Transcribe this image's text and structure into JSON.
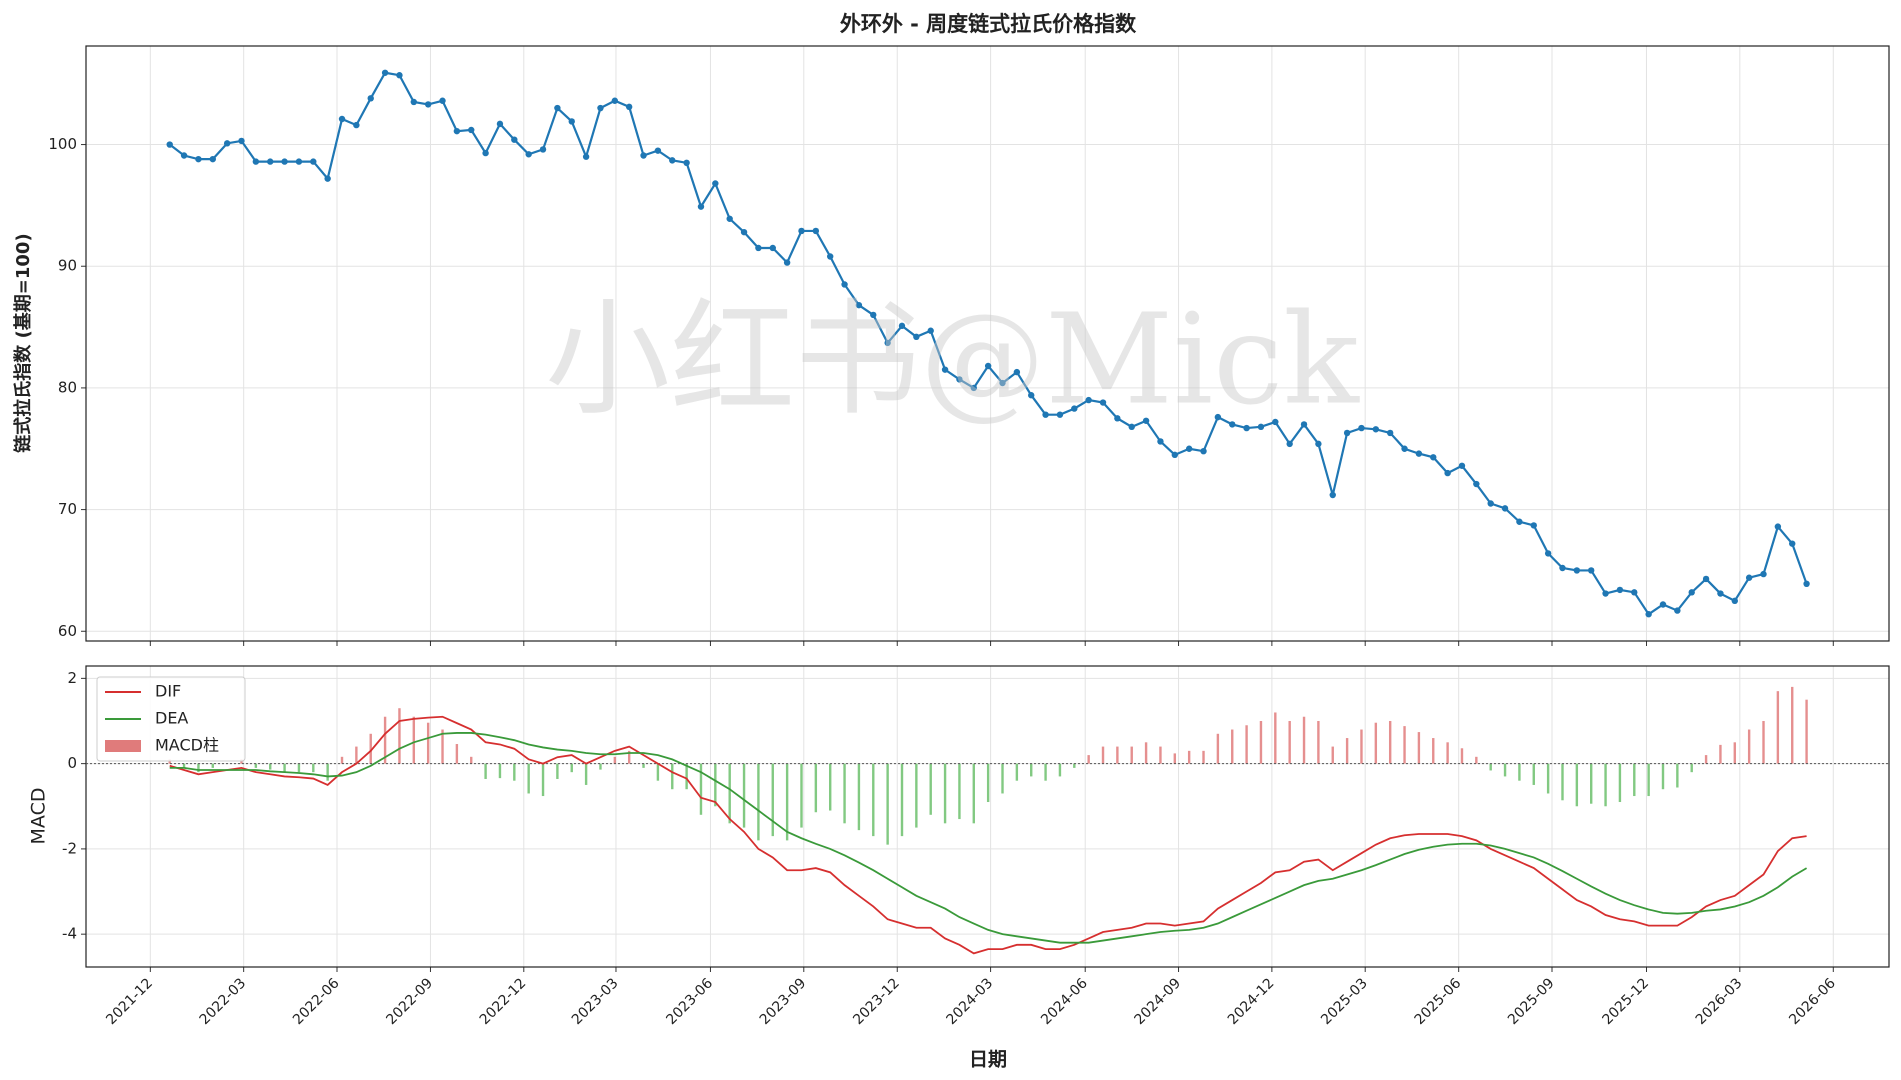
{
  "chart_data": [
    {
      "type": "line",
      "title": "外环外 - 周度链式拉氏价格指数",
      "ylabel": "链式拉氏指数 (基期=100)",
      "watermark": "小红书@Mick",
      "color": "#1f77b4",
      "grid": true,
      "xlim": [
        -5.83,
        119.74
      ],
      "ylim": [
        59.2,
        108.1
      ],
      "yticks": [
        60,
        70,
        80,
        90,
        100
      ],
      "values": [
        100,
        99.1,
        98.8,
        98.8,
        100.1,
        100.3,
        98.6,
        98.6,
        98.6,
        98.6,
        98.6,
        97.2,
        102.1,
        101.6,
        103.8,
        105.9,
        105.7,
        103.5,
        103.3,
        103.6,
        101.1,
        101.2,
        99.3,
        101.7,
        100.4,
        99.2,
        99.6,
        103.0,
        101.9,
        99.0,
        103.0,
        103.6,
        103.1,
        99.1,
        99.5,
        98.7,
        98.5,
        94.9,
        96.8,
        93.9,
        92.8,
        91.5,
        91.5,
        90.3,
        92.9,
        92.9,
        90.8,
        88.5,
        86.8,
        86.0,
        83.7,
        85.1,
        84.2,
        84.7,
        81.5,
        80.7,
        80.0,
        81.8,
        80.4,
        81.3,
        79.4,
        77.8,
        77.8,
        78.3,
        79.0,
        78.8,
        77.5,
        76.8,
        77.3,
        75.6,
        74.5,
        75.0,
        74.8,
        77.6,
        77.0,
        76.7,
        76.8,
        77.2,
        75.4,
        77.0,
        75.4,
        71.2,
        76.3,
        76.7,
        76.6,
        76.3,
        75.0,
        74.6,
        74.3,
        73.0,
        73.6,
        72.1,
        70.5,
        70.1,
        69.0,
        68.7,
        66.4,
        65.2,
        65.0,
        65.0,
        63.1,
        63.4,
        63.2,
        61.4,
        62.2,
        61.7,
        63.2,
        64.3,
        63.1,
        62.5,
        64.4,
        64.7,
        68.6,
        67.2,
        63.9
      ]
    },
    {
      "type": "line",
      "xlabel": "日期",
      "ylabel": "MACD",
      "grid": true,
      "legend": "upper left",
      "xlim": [
        -5.83,
        119.74
      ],
      "xticks": [
        {
          "value": -1.35,
          "label": "2021-12"
        },
        {
          "value": 5.15,
          "label": "2022-03"
        },
        {
          "value": 11.65,
          "label": "2022-06"
        },
        {
          "value": 18.16,
          "label": "2022-09"
        },
        {
          "value": 24.66,
          "label": "2022-12"
        },
        {
          "value": 31.08,
          "label": "2023-03"
        },
        {
          "value": 37.66,
          "label": "2023-06"
        },
        {
          "value": 44.16,
          "label": "2023-09"
        },
        {
          "value": 50.67,
          "label": "2023-12"
        },
        {
          "value": 57.17,
          "label": "2024-03"
        },
        {
          "value": 63.76,
          "label": "2024-06"
        },
        {
          "value": 70.26,
          "label": "2024-09"
        },
        {
          "value": 76.76,
          "label": "2024-12"
        },
        {
          "value": 83.26,
          "label": "2025-03"
        },
        {
          "value": 89.77,
          "label": "2025-06"
        },
        {
          "value": 96.27,
          "label": "2025-09"
        },
        {
          "value": 102.85,
          "label": "2025-12"
        },
        {
          "value": 109.35,
          "label": "2026-03"
        },
        {
          "value": 115.86,
          "label": "2026-06"
        }
      ],
      "ylim": [
        -4.77,
        2.29
      ],
      "yticks": [
        -4,
        -2,
        0,
        2
      ],
      "series": [
        {
          "name": "DIF",
          "color": "#d62f2f",
          "values": [
            -0.05,
            -0.15,
            -0.25,
            -0.2,
            -0.15,
            -0.1,
            -0.2,
            -0.25,
            -0.3,
            -0.32,
            -0.35,
            -0.5,
            -0.2,
            0.0,
            0.3,
            0.7,
            1.0,
            1.05,
            1.08,
            1.1,
            0.95,
            0.8,
            0.5,
            0.45,
            0.35,
            0.1,
            0.0,
            0.15,
            0.2,
            0.0,
            0.15,
            0.3,
            0.4,
            0.2,
            0.0,
            -0.2,
            -0.35,
            -0.8,
            -0.9,
            -1.3,
            -1.6,
            -2.0,
            -2.2,
            -2.5,
            -2.5,
            -2.45,
            -2.55,
            -2.85,
            -3.1,
            -3.35,
            -3.65,
            -3.75,
            -3.85,
            -3.85,
            -4.1,
            -4.25,
            -4.45,
            -4.35,
            -4.35,
            -4.25,
            -4.25,
            -4.35,
            -4.35,
            -4.25,
            -4.1,
            -3.95,
            -3.9,
            -3.85,
            -3.75,
            -3.75,
            -3.8,
            -3.75,
            -3.7,
            -3.4,
            -3.2,
            -3.0,
            -2.8,
            -2.55,
            -2.5,
            -2.3,
            -2.25,
            -2.5,
            -2.3,
            -2.1,
            -1.9,
            -1.75,
            -1.68,
            -1.65,
            -1.65,
            -1.65,
            -1.7,
            -1.8,
            -2.0,
            -2.15,
            -2.3,
            -2.45,
            -2.7,
            -2.95,
            -3.2,
            -3.35,
            -3.55,
            -3.65,
            -3.7,
            -3.8,
            -3.8,
            -3.8,
            -3.6,
            -3.35,
            -3.2,
            -3.1,
            -2.85,
            -2.6,
            -2.05,
            -1.75,
            -1.7
          ]
        },
        {
          "name": "DEA",
          "color": "#3a9a3a",
          "values": [
            -0.1,
            -0.1,
            -0.15,
            -0.15,
            -0.15,
            -0.15,
            -0.15,
            -0.18,
            -0.2,
            -0.22,
            -0.25,
            -0.3,
            -0.28,
            -0.2,
            -0.05,
            0.15,
            0.35,
            0.5,
            0.6,
            0.7,
            0.72,
            0.72,
            0.68,
            0.62,
            0.55,
            0.45,
            0.38,
            0.33,
            0.3,
            0.25,
            0.22,
            0.22,
            0.25,
            0.25,
            0.2,
            0.1,
            -0.05,
            -0.2,
            -0.4,
            -0.6,
            -0.85,
            -1.1,
            -1.35,
            -1.6,
            -1.75,
            -1.88,
            -2.0,
            -2.15,
            -2.32,
            -2.5,
            -2.7,
            -2.9,
            -3.1,
            -3.25,
            -3.4,
            -3.6,
            -3.75,
            -3.9,
            -4.0,
            -4.05,
            -4.1,
            -4.15,
            -4.2,
            -4.2,
            -4.2,
            -4.15,
            -4.1,
            -4.05,
            -4.0,
            -3.95,
            -3.92,
            -3.9,
            -3.85,
            -3.75,
            -3.6,
            -3.45,
            -3.3,
            -3.15,
            -3.0,
            -2.85,
            -2.75,
            -2.7,
            -2.6,
            -2.5,
            -2.38,
            -2.25,
            -2.12,
            -2.02,
            -1.95,
            -1.9,
            -1.88,
            -1.88,
            -1.92,
            -2.0,
            -2.1,
            -2.2,
            -2.35,
            -2.52,
            -2.7,
            -2.88,
            -3.05,
            -3.2,
            -3.32,
            -3.42,
            -3.5,
            -3.52,
            -3.5,
            -3.45,
            -3.42,
            -3.35,
            -3.25,
            -3.1,
            -2.9,
            -2.65,
            -2.45
          ]
        },
        {
          "name": "MACD柱",
          "type": "bar",
          "color": "#e07b7b",
          "negative_color": "#6cbf6c",
          "values": [
            0.1,
            -0.1,
            -0.2,
            -0.1,
            0,
            0.1,
            -0.1,
            -0.14,
            -0.2,
            -0.2,
            -0.2,
            -0.4,
            0.16,
            0.4,
            0.7,
            1.1,
            1.3,
            1.1,
            0.96,
            0.8,
            0.46,
            0.16,
            -0.36,
            -0.34,
            -0.4,
            -0.7,
            -0.76,
            -0.36,
            -0.2,
            -0.5,
            -0.14,
            0.16,
            0.3,
            -0.1,
            -0.4,
            -0.6,
            -0.6,
            -1.2,
            -1.0,
            -1.4,
            -1.5,
            -1.8,
            -1.7,
            -1.8,
            -1.5,
            -1.14,
            -1.1,
            -1.4,
            -1.56,
            -1.7,
            -1.9,
            -1.7,
            -1.5,
            -1.2,
            -1.4,
            -1.3,
            -1.4,
            -0.9,
            -0.7,
            -0.4,
            -0.3,
            -0.4,
            -0.3,
            -0.1,
            0.2,
            0.4,
            0.4,
            0.4,
            0.5,
            0.4,
            0.24,
            0.3,
            0.3,
            0.7,
            0.8,
            0.9,
            1.0,
            1.2,
            1.0,
            1.1,
            1.0,
            0.4,
            0.6,
            0.8,
            0.96,
            1.0,
            0.88,
            0.74,
            0.6,
            0.5,
            0.36,
            0.16,
            -0.16,
            -0.3,
            -0.4,
            -0.5,
            -0.7,
            -0.86,
            -1.0,
            -0.94,
            -1.0,
            -0.9,
            -0.76,
            -0.76,
            -0.6,
            -0.56,
            -0.2,
            0.2,
            0.44,
            0.5,
            0.8,
            1.0,
            1.7,
            1.8,
            1.5
          ]
        }
      ]
    }
  ]
}
